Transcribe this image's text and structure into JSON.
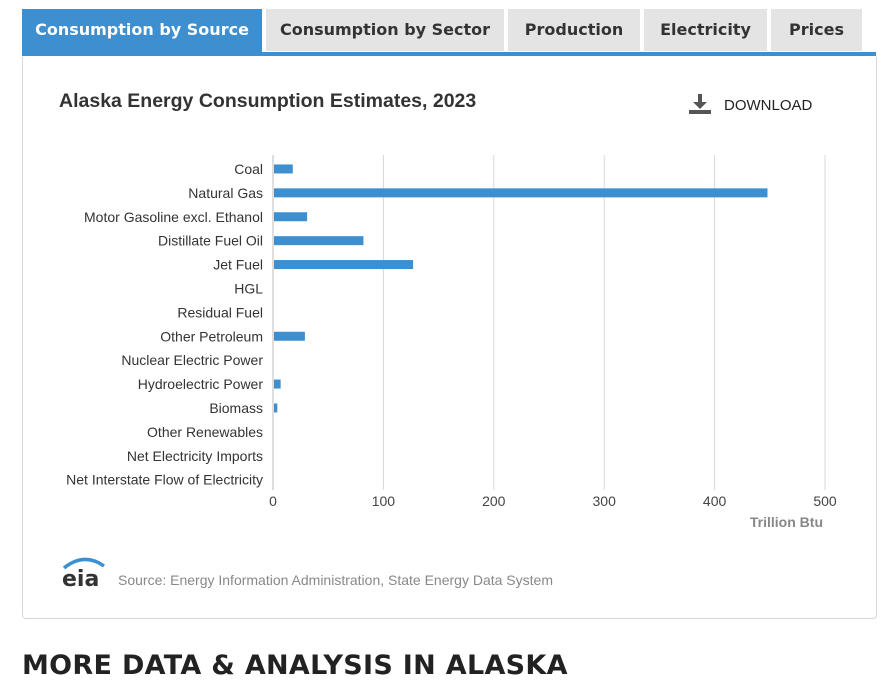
{
  "tabs": [
    {
      "label": "Consumption by Source",
      "active": true
    },
    {
      "label": "Consumption by Sector",
      "active": false
    },
    {
      "label": "Production",
      "active": false
    },
    {
      "label": "Electricity",
      "active": false
    },
    {
      "label": "Prices",
      "active": false
    }
  ],
  "download": {
    "label": "DOWNLOAD",
    "icon": "download-icon"
  },
  "logo": {
    "text": "eia"
  },
  "source_text": "Source: Energy Information Administration, State Energy Data System",
  "more_heading": "MORE DATA & ANALYSIS IN ALASKA",
  "colors": {
    "accent": "#3d8fd0",
    "bar": "#3d8fd0",
    "grid": "#d9d9d9"
  },
  "chart_data": {
    "type": "bar",
    "orientation": "horizontal",
    "title": "Alaska Energy Consumption Estimates, 2023",
    "xlabel": "Trillion Btu",
    "ylabel": "",
    "xlim": [
      0,
      500
    ],
    "xticks": [
      0,
      100,
      200,
      300,
      400,
      500
    ],
    "grid": true,
    "categories": [
      "Coal",
      "Natural Gas",
      "Motor Gasoline excl. Ethanol",
      "Distillate Fuel Oil",
      "Jet Fuel",
      "HGL",
      "Residual Fuel",
      "Other Petroleum",
      "Nuclear Electric Power",
      "Hydroelectric Power",
      "Biomass",
      "Other Renewables",
      "Net Electricity Imports",
      "Net Interstate Flow of Electricity"
    ],
    "values": [
      17,
      447,
      30,
      81,
      126,
      0,
      0,
      28,
      0,
      6,
      3,
      0,
      0,
      0
    ]
  }
}
